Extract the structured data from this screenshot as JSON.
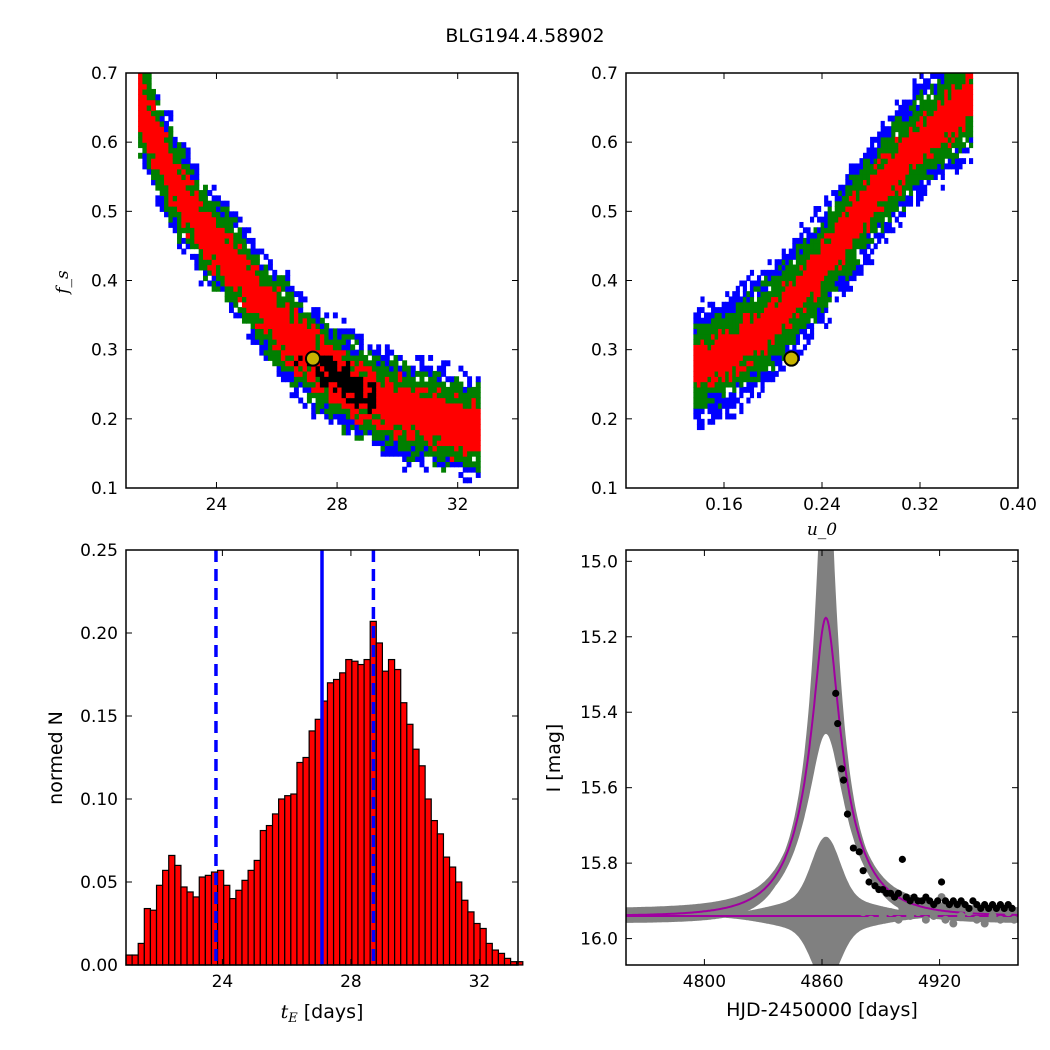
{
  "title": "BLG194.4.58902",
  "chart_data": [
    {
      "type": "heatmap",
      "panel": "top-left",
      "xlabel": "",
      "ylabel": "f_s",
      "xlim": [
        21.0,
        34.0
      ],
      "ylim": [
        0.1,
        0.7
      ],
      "xticks": [
        24,
        28,
        32
      ],
      "yticks": [
        0.1,
        0.2,
        0.3,
        0.4,
        0.5,
        0.6,
        0.7
      ],
      "colors": {
        "outer": "#0000ff",
        "middle": "#007f00",
        "inner": "#ff0000",
        "core": "#000000"
      },
      "band": {
        "centers": [
          [
            21.4,
            0.65
          ],
          [
            22.5,
            0.54
          ],
          [
            23.5,
            0.47
          ],
          [
            24.5,
            0.42
          ],
          [
            25.5,
            0.36
          ],
          [
            26.5,
            0.31
          ],
          [
            27.5,
            0.27
          ],
          [
            28.5,
            0.24
          ],
          [
            29.5,
            0.22
          ],
          [
            30.5,
            0.205
          ],
          [
            31.5,
            0.19
          ],
          [
            32.6,
            0.185
          ]
        ],
        "halfwidths": {
          "core": 0.015,
          "inner": 0.035,
          "middle": 0.06,
          "outer": 0.075
        }
      },
      "best_fit": {
        "x": 27.2,
        "y": 0.287
      }
    },
    {
      "type": "heatmap",
      "panel": "top-right",
      "xlabel": "u_0",
      "ylabel": "",
      "xlim": [
        0.08,
        0.4
      ],
      "ylim": [
        0.1,
        0.7
      ],
      "xticks": [
        "0.16",
        "0.24",
        "0.32",
        "0.40"
      ],
      "yticks": [
        0.1,
        0.2,
        0.3,
        0.4,
        0.5,
        0.6,
        0.7
      ],
      "colors": {
        "outer": "#0000ff",
        "middle": "#007f00",
        "inner": "#ff0000",
        "core": "#000000"
      },
      "band": {
        "centers": [
          [
            0.135,
            0.27
          ],
          [
            0.16,
            0.29
          ],
          [
            0.18,
            0.31
          ],
          [
            0.2,
            0.34
          ],
          [
            0.22,
            0.38
          ],
          [
            0.24,
            0.42
          ],
          [
            0.26,
            0.47
          ],
          [
            0.28,
            0.52
          ],
          [
            0.3,
            0.56
          ],
          [
            0.32,
            0.6
          ],
          [
            0.34,
            0.63
          ],
          [
            0.36,
            0.66
          ]
        ],
        "halfwidths": {
          "core": 0.012,
          "inner": 0.03,
          "middle": 0.06,
          "outer": 0.085
        }
      },
      "best_fit": {
        "x": 0.215,
        "y": 0.287
      }
    },
    {
      "type": "bar",
      "panel": "bottom-left",
      "xlabel": "t_E [days]",
      "ylabel": "normed N",
      "xlim": [
        21.0,
        33.2
      ],
      "ylim": [
        0.0,
        0.25
      ],
      "xticks": [
        24,
        28,
        32
      ],
      "yticks": [
        "0.00",
        "0.05",
        "0.10",
        "0.15",
        "0.20",
        "0.25"
      ],
      "bin_start": 21.0,
      "bin_width": 0.19,
      "values": [
        0.006,
        0.006,
        0.013,
        0.034,
        0.033,
        0.048,
        0.057,
        0.066,
        0.06,
        0.047,
        0.044,
        0.041,
        0.053,
        0.054,
        0.056,
        0.057,
        0.048,
        0.04,
        0.045,
        0.051,
        0.057,
        0.063,
        0.081,
        0.084,
        0.091,
        0.1,
        0.102,
        0.103,
        0.122,
        0.125,
        0.141,
        0.148,
        0.159,
        0.17,
        0.172,
        0.176,
        0.184,
        0.183,
        0.181,
        0.184,
        0.207,
        0.194,
        0.177,
        0.184,
        0.178,
        0.158,
        0.145,
        0.13,
        0.12,
        0.1,
        0.087,
        0.079,
        0.065,
        0.059,
        0.05,
        0.039,
        0.032,
        0.025,
        0.022,
        0.013,
        0.009,
        0.007,
        0.004,
        0.002,
        0.002
      ],
      "bar_color": "#ff0000",
      "edge_color": "#000000",
      "vlines": [
        {
          "x": 23.8,
          "style": "dashed",
          "color": "#0000ff"
        },
        {
          "x": 27.1,
          "style": "solid",
          "color": "#0000ff"
        },
        {
          "x": 28.7,
          "style": "dashed",
          "color": "#0000ff"
        }
      ]
    },
    {
      "type": "line",
      "panel": "bottom-right",
      "xlabel": "HJD-2450000 [days]",
      "ylabel": "I [mag]",
      "xlim": [
        4760,
        4960
      ],
      "ylim": [
        16.07,
        14.97
      ],
      "xticks": [
        4800,
        4860,
        4920
      ],
      "yticks": [
        "15.0",
        "15.2",
        "15.4",
        "15.6",
        "15.8",
        "16.0"
      ],
      "model": {
        "t0": 4862.0,
        "tE": 27.0,
        "u0": 0.215,
        "fs": 0.287,
        "baseline": 15.94,
        "color": "#a000a0"
      },
      "data_points": [
        [
          4867,
          15.35
        ],
        [
          4868,
          15.43
        ],
        [
          4870,
          15.55
        ],
        [
          4871,
          15.58
        ],
        [
          4873,
          15.67
        ],
        [
          4876,
          15.76
        ],
        [
          4879,
          15.77
        ],
        [
          4881,
          15.82
        ],
        [
          4884,
          15.85
        ],
        [
          4887,
          15.86
        ],
        [
          4889,
          15.87
        ],
        [
          4891,
          15.87
        ],
        [
          4893,
          15.88
        ],
        [
          4895,
          15.88
        ],
        [
          4897,
          15.89
        ],
        [
          4899,
          15.88
        ],
        [
          4901,
          15.79
        ],
        [
          4903,
          15.89
        ],
        [
          4905,
          15.9
        ],
        [
          4907,
          15.89
        ],
        [
          4909,
          15.9
        ],
        [
          4911,
          15.9
        ],
        [
          4913,
          15.89
        ],
        [
          4915,
          15.9
        ],
        [
          4917,
          15.91
        ],
        [
          4919,
          15.9
        ],
        [
          4921,
          15.85
        ],
        [
          4923,
          15.9
        ],
        [
          4925,
          15.91
        ],
        [
          4927,
          15.9
        ],
        [
          4929,
          15.91
        ],
        [
          4931,
          15.9
        ],
        [
          4933,
          15.91
        ],
        [
          4935,
          15.92
        ],
        [
          4937,
          15.9
        ],
        [
          4939,
          15.91
        ],
        [
          4941,
          15.92
        ],
        [
          4943,
          15.91
        ],
        [
          4945,
          15.92
        ],
        [
          4947,
          15.91
        ],
        [
          4949,
          15.92
        ],
        [
          4951,
          15.91
        ],
        [
          4953,
          15.92
        ],
        [
          4955,
          15.91
        ],
        [
          4957,
          15.92
        ]
      ],
      "residual_points": [
        [
          4881,
          15.93
        ],
        [
          4885,
          15.95
        ],
        [
          4891,
          15.94
        ],
        [
          4895,
          15.93
        ],
        [
          4899,
          15.95
        ],
        [
          4901,
          15.92
        ],
        [
          4905,
          15.94
        ],
        [
          4909,
          15.93
        ],
        [
          4913,
          15.95
        ],
        [
          4917,
          15.94
        ],
        [
          4921,
          15.89
        ],
        [
          4923,
          15.95
        ],
        [
          4927,
          15.96
        ],
        [
          4931,
          15.94
        ],
        [
          4935,
          15.93
        ],
        [
          4939,
          15.95
        ],
        [
          4943,
          15.96
        ],
        [
          4947,
          15.94
        ],
        [
          4951,
          15.95
        ],
        [
          4955,
          15.93
        ],
        [
          4958,
          15.95
        ]
      ],
      "band_color": "#808080"
    }
  ]
}
